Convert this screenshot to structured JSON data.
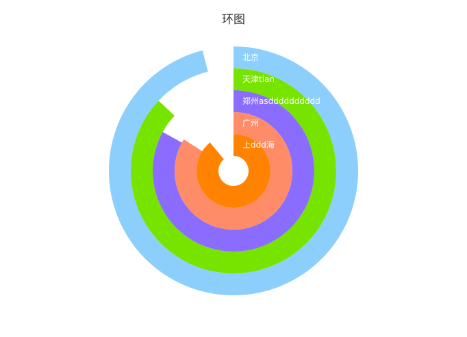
{
  "chart_data": {
    "type": "radial-bar",
    "title": "环图",
    "max": 100,
    "series": [
      {
        "name": "北京",
        "value": 96,
        "color": "#8ccefc"
      },
      {
        "name": "天津tian",
        "value": 87,
        "color": "#77e400"
      },
      {
        "name": "郑州asdddddddddd",
        "value": 83,
        "color": "#8a6dff"
      },
      {
        "name": "广州",
        "value": 84,
        "color": "#ff8c69"
      },
      {
        "name": "上ddd海",
        "value": 89,
        "color": "#ff8300"
      }
    ]
  }
}
